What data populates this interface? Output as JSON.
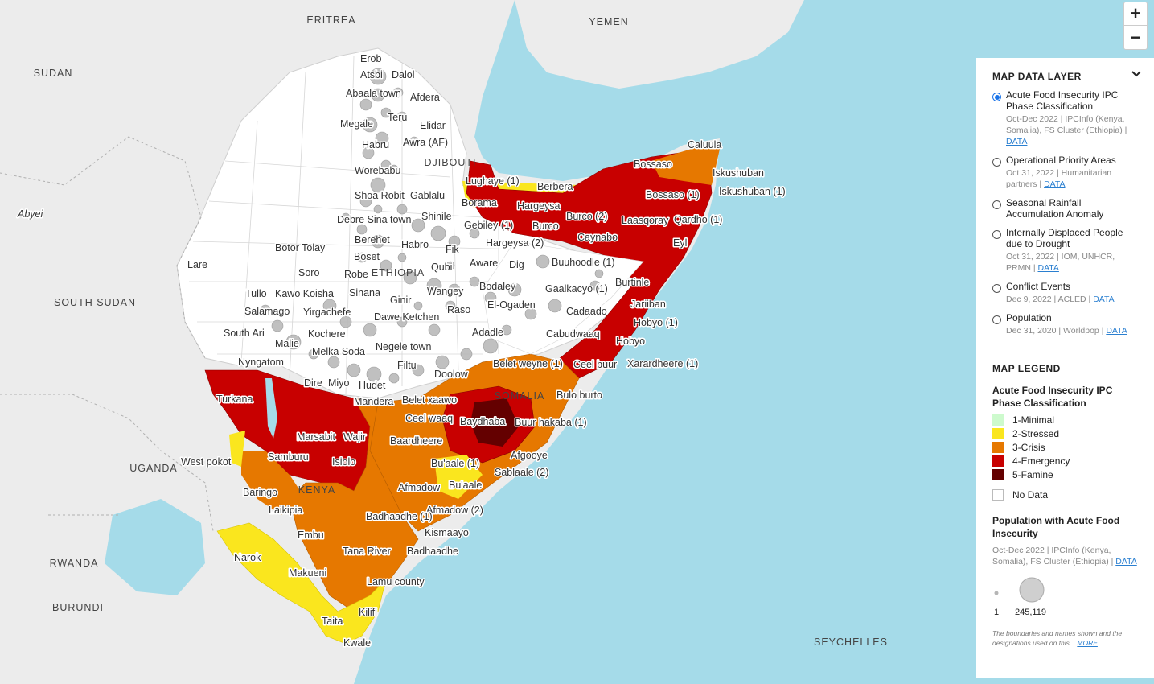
{
  "map": {
    "colors": {
      "sea": "#a5dbe9",
      "land": "#ececec",
      "minimal": "#cdfacd",
      "stressed": "#fae61e",
      "crisis": "#e67800",
      "emergency": "#c80000",
      "famine": "#640000",
      "no_data": "#ffffff",
      "bubble": "#b5b5b5"
    },
    "countries": [
      "ERITREA",
      "YEMEN",
      "SUDAN",
      "DJIBOUTI",
      "ETHIOPIA",
      "SOUTH SUDAN",
      "SOMALIA",
      "UGANDA",
      "KENYA",
      "RWANDA",
      "BURUNDI",
      "SEYCHELLES"
    ],
    "places": [
      "Erob",
      "Atsbi",
      "Dalol",
      "Abaala town",
      "Afdera",
      "Teru",
      "Megale",
      "Elidar",
      "Habru",
      "Awra (AF)",
      "Worebabu",
      "Shoa Robit",
      "Gablalu",
      "Debre Sina town",
      "Shinile",
      "Berehet",
      "Habro",
      "Fik",
      "Boset",
      "Qubi",
      "Robe",
      "Sinana",
      "Ginir",
      "Wangey",
      "Raso",
      "Dawe Ketchen",
      "Kochere",
      "Melka Soda",
      "Negele town",
      "Filtu",
      "Doolow",
      "Dire",
      "Miyo",
      "Hudet",
      "Mandera",
      "Botor Tolay",
      "Soro",
      "Tullo",
      "Kawo Koisha",
      "Yirgachefe",
      "Salamago",
      "South Ari",
      "Malie",
      "Nyngatom",
      "Lare",
      "Abyei",
      "Lughaye (1)",
      "Berbera",
      "Borama",
      "Hargeysa",
      "Gebiley (1)",
      "Hargeysa (2)",
      "Burco",
      "Burco (2)",
      "Caynabo",
      "Laasqoray",
      "Qardho (1)",
      "Bossaso",
      "Bossaso (1)",
      "Caluula",
      "Iskushuban",
      "Iskushuban (1)",
      "Eyl",
      "Buuhoodle (1)",
      "Aware",
      "Dig",
      "Bodaley",
      "El-Ogaden",
      "Adadle",
      "Gaalkacyo (1)",
      "Burtinle",
      "Jariiban",
      "Cadaado",
      "Hobyo (1)",
      "Cabudwaaq",
      "Hobyo",
      "Xarardheere (1)",
      "Belet weyne (1)",
      "Ceel buur",
      "Bulo burto",
      "Belet xaawo",
      "Ceel waaq",
      "Baydhaba",
      "Buur hakaba (1)",
      "Baardheere",
      "Bu'aale (1)",
      "Afgooye",
      "Sablaale (2)",
      "Afmadow",
      "Bu'aale",
      "Afmadow (2)",
      "Kismaayo",
      "Badhaadhe",
      "Badhaadhe (1)",
      "Turkana",
      "Marsabit",
      "Wajir",
      "Samburu",
      "Isiolo",
      "West pokot",
      "Baringo",
      "Laikipia",
      "Embu",
      "Narok",
      "Tana River",
      "Makueni",
      "Lamu county",
      "Taita",
      "Kilifi",
      "Kwale"
    ]
  },
  "zoom": {
    "in_label": "+",
    "out_label": "−"
  },
  "panel": {
    "title": "MAP DATA LAYER",
    "options": [
      {
        "label": "Acute Food Insecurity IPC Phase Classification",
        "meta": "Oct-Dec 2022 | IPCInfo (Kenya, Somalia), FS Cluster (Ethiopia) |",
        "link": "DATA",
        "checked": true
      },
      {
        "label": "Operational Priority Areas",
        "meta": "Oct 31, 2022 | Humanitarian partners |",
        "link": "DATA",
        "checked": false
      },
      {
        "label": "Seasonal Rainfall Accumulation Anomaly",
        "meta": "",
        "link": "",
        "checked": false
      },
      {
        "label": "Internally Displaced People due to Drought",
        "meta": "Oct 31, 2022 | IOM, UNHCR, PRMN |",
        "link": "DATA",
        "checked": false
      },
      {
        "label": "Conflict Events",
        "meta": "Dec 9, 2022 | ACLED |",
        "link": "DATA",
        "checked": false
      },
      {
        "label": "Population",
        "meta": "Dec 31, 2020 | Worldpop |",
        "link": "DATA",
        "checked": false
      }
    ],
    "legend": {
      "title": "MAP LEGEND",
      "ipc_title": "Acute Food Insecurity IPC Phase Classification",
      "phases": [
        {
          "label": "1-Minimal",
          "color": "#cdfacd"
        },
        {
          "label": "2-Stressed",
          "color": "#fae61e"
        },
        {
          "label": "3-Crisis",
          "color": "#e67800"
        },
        {
          "label": "4-Emergency",
          "color": "#c80000"
        },
        {
          "label": "5-Famine",
          "color": "#640000"
        }
      ],
      "no_data": "No Data",
      "pop_title": "Population with Acute Food Insecurity",
      "pop_meta": "Oct-Dec 2022 | IPCInfo (Kenya, Somalia), FS Cluster (Ethiopia) |",
      "pop_link": "DATA",
      "bubble_min": "1",
      "bubble_max": "245,119",
      "disclaimer": "The boundaries and names shown and the designations used on this ...",
      "more": "MORE"
    }
  }
}
